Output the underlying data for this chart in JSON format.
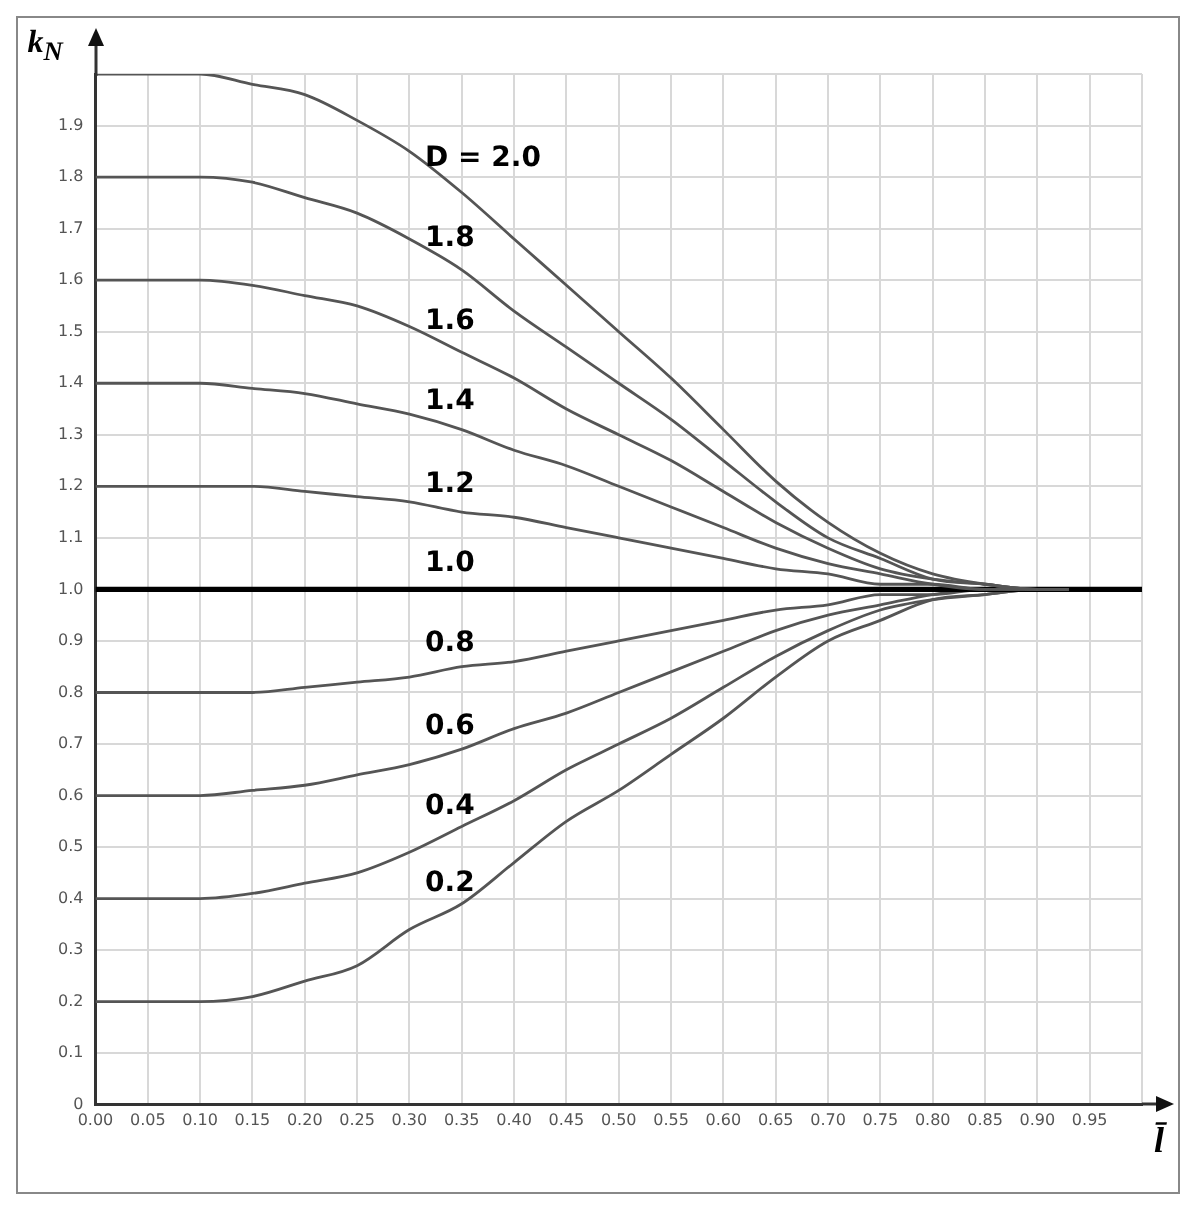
{
  "chart_data": {
    "type": "line",
    "xlabel": "l̄",
    "ylabel": "k$_{N}$",
    "x": [
      0,
      0.05,
      0.1,
      0.15,
      0.2,
      0.25,
      0.3,
      0.35,
      0.4,
      0.45,
      0.5,
      0.55,
      0.6,
      0.65,
      0.7,
      0.75,
      0.8,
      0.85,
      0.9,
      0.93
    ],
    "series": [
      {
        "name": "D = 2.0",
        "color": "#555555",
        "values": [
          2,
          2,
          2,
          1.98,
          1.96,
          1.91,
          1.85,
          1.77,
          1.68,
          1.59,
          1.5,
          1.41,
          1.31,
          1.21,
          1.13,
          1.07,
          1.03,
          1.01,
          1.0,
          1.0
        ]
      },
      {
        "name": "1.8",
        "color": "#555555",
        "values": [
          1.8,
          1.8,
          1.8,
          1.79,
          1.76,
          1.73,
          1.68,
          1.62,
          1.54,
          1.47,
          1.4,
          1.33,
          1.25,
          1.17,
          1.1,
          1.06,
          1.02,
          1.01,
          1.0,
          1.0
        ]
      },
      {
        "name": "1.6",
        "color": "#555555",
        "values": [
          1.6,
          1.6,
          1.6,
          1.59,
          1.57,
          1.55,
          1.51,
          1.46,
          1.41,
          1.35,
          1.3,
          1.25,
          1.19,
          1.13,
          1.08,
          1.04,
          1.02,
          1.01,
          1.0,
          1.0
        ]
      },
      {
        "name": "1.4",
        "color": "#555555",
        "values": [
          1.4,
          1.4,
          1.4,
          1.39,
          1.38,
          1.36,
          1.34,
          1.31,
          1.27,
          1.24,
          1.2,
          1.16,
          1.12,
          1.08,
          1.05,
          1.03,
          1.01,
          1.0,
          1.0,
          1.0
        ]
      },
      {
        "name": "1.2",
        "color": "#555555",
        "values": [
          1.2,
          1.2,
          1.2,
          1.2,
          1.19,
          1.18,
          1.17,
          1.15,
          1.14,
          1.12,
          1.1,
          1.08,
          1.06,
          1.04,
          1.03,
          1.01,
          1.01,
          1.0,
          1.0,
          1.0
        ]
      },
      {
        "name": "1.0",
        "color": "#000000",
        "x": [
          0,
          1
        ],
        "values": [
          1,
          1
        ]
      },
      {
        "name": "0.8",
        "color": "#555555",
        "values": [
          0.8,
          0.8,
          0.8,
          0.8,
          0.81,
          0.82,
          0.83,
          0.85,
          0.86,
          0.88,
          0.9,
          0.92,
          0.94,
          0.96,
          0.97,
          0.99,
          0.99,
          1.0,
          1.0,
          1.0
        ]
      },
      {
        "name": "0.6",
        "color": "#555555",
        "values": [
          0.6,
          0.6,
          0.6,
          0.61,
          0.62,
          0.64,
          0.66,
          0.69,
          0.73,
          0.76,
          0.8,
          0.84,
          0.88,
          0.92,
          0.95,
          0.97,
          0.99,
          1.0,
          1.0,
          1.0
        ]
      },
      {
        "name": "0.4",
        "color": "#555555",
        "values": [
          0.4,
          0.4,
          0.4,
          0.41,
          0.43,
          0.45,
          0.49,
          0.54,
          0.59,
          0.65,
          0.7,
          0.75,
          0.81,
          0.87,
          0.92,
          0.96,
          0.98,
          0.99,
          1.0,
          1.0
        ]
      },
      {
        "name": "0.2",
        "color": "#555555",
        "values": [
          0.2,
          0.2,
          0.2,
          0.21,
          0.24,
          0.27,
          0.34,
          0.39,
          0.47,
          0.55,
          0.61,
          0.68,
          0.75,
          0.83,
          0.9,
          0.94,
          0.98,
          0.99,
          1.0,
          1.0
        ]
      }
    ],
    "xlim": [
      0,
      1
    ],
    "xticks": [
      {
        "value": 0,
        "label": "0.00"
      },
      {
        "value": 0.05,
        "label": "0.05"
      },
      {
        "value": 0.1,
        "label": "0.10"
      },
      {
        "value": 0.15,
        "label": "0.15"
      },
      {
        "value": 0.2,
        "label": "0.20"
      },
      {
        "value": 0.25,
        "label": "0.25"
      },
      {
        "value": 0.3,
        "label": "0.30"
      },
      {
        "value": 0.35,
        "label": "0.35"
      },
      {
        "value": 0.4,
        "label": "0.40"
      },
      {
        "value": 0.45,
        "label": "0.45"
      },
      {
        "value": 0.5,
        "label": "0.50"
      },
      {
        "value": 0.55,
        "label": "0.55"
      },
      {
        "value": 0.6,
        "label": "0.60"
      },
      {
        "value": 0.65,
        "label": "0.65"
      },
      {
        "value": 0.7,
        "label": "0.70"
      },
      {
        "value": 0.75,
        "label": "0.75"
      },
      {
        "value": 0.8,
        "label": "0.80"
      },
      {
        "value": 0.85,
        "label": "0.85"
      },
      {
        "value": 0.9,
        "label": "0.90"
      },
      {
        "value": 0.95,
        "label": "0.95"
      },
      {
        "value": 1,
        "label": null
      }
    ],
    "ylim": [
      0,
      2
    ],
    "yticks": [
      0,
      0.1,
      0.2,
      0.3,
      0.4,
      0.5,
      0.6,
      0.7,
      0.8,
      0.9,
      {
        "value": 1,
        "label": "1.0"
      },
      1.1,
      1.2,
      1.3,
      1.4,
      1.5,
      1.6,
      1.7,
      1.8,
      1.9,
      {
        "value": 2,
        "label": null
      }
    ],
    "grid": true,
    "legend": false,
    "marker": "none",
    "line_style": "solid"
  }
}
